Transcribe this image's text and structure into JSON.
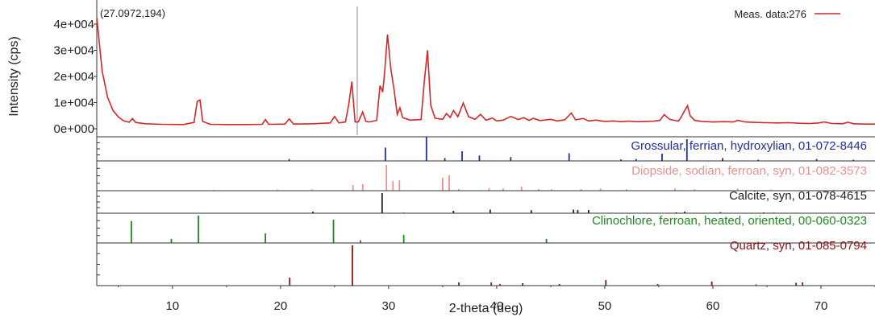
{
  "chart_data": {
    "type": "line",
    "xlabel": "2-theta (deg)",
    "ylabel": "Intensity (cps)",
    "xlim": [
      3,
      75
    ],
    "ylim": [
      0,
      40000
    ],
    "x_ticks": [
      "10",
      "20",
      "30",
      "40",
      "50",
      "60",
      "70"
    ],
    "y_ticks": [
      "0e+000",
      "1e+004",
      "2e+004",
      "3e+004",
      "4e+004"
    ],
    "cursor_readout": "(27.0972,194)",
    "cursor_x": 27.0972,
    "legend": {
      "label": "Meas. data:276",
      "color": "#d62728",
      "position": "top-right"
    },
    "series": [
      {
        "name": "Meas. data:276",
        "color": "#d62728",
        "x": [
          3.0,
          3.5,
          4.0,
          4.5,
          5.0,
          5.5,
          6.0,
          6.3,
          6.6,
          7.5,
          9.0,
          11.0,
          12.0,
          12.3,
          12.55,
          12.8,
          13.5,
          15.0,
          17.0,
          18.3,
          18.6,
          18.9,
          20.4,
          20.8,
          21.2,
          23.0,
          24.6,
          25.0,
          25.4,
          26.0,
          26.3,
          26.6,
          26.9,
          27.2,
          27.6,
          27.9,
          28.2,
          28.9,
          29.2,
          29.45,
          29.6,
          29.9,
          30.2,
          30.5,
          30.8,
          31.05,
          31.3,
          32.0,
          33.0,
          33.3,
          33.6,
          33.9,
          34.3,
          35.0,
          35.35,
          35.7,
          36.0,
          36.4,
          36.9,
          37.4,
          38.0,
          38.5,
          39.0,
          39.6,
          40.0,
          40.6,
          41.3,
          42.0,
          42.5,
          43.0,
          43.4,
          44.0,
          45.0,
          45.6,
          46.3,
          46.9,
          47.3,
          48.0,
          48.5,
          49.2,
          50.0,
          50.8,
          51.5,
          52.2,
          53.0,
          53.8,
          54.5,
          55.1,
          55.5,
          56.0,
          56.8,
          57.0,
          57.4,
          57.65,
          57.9,
          58.3,
          59.0,
          60.0,
          61.0,
          61.9,
          62.3,
          63.0,
          64.0,
          65.0,
          66.0,
          67.0,
          68.0,
          69.0,
          69.8,
          70.3,
          71.0,
          72.0,
          72.5,
          73.0,
          74.0,
          75.0
        ],
        "y": [
          42500,
          22000,
          12000,
          7000,
          4500,
          3000,
          2500,
          3900,
          2400,
          1900,
          1700,
          1600,
          2400,
          10500,
          11000,
          2800,
          1700,
          1600,
          1600,
          1700,
          3500,
          1700,
          1800,
          3800,
          1800,
          1900,
          2200,
          4700,
          2200,
          2600,
          9000,
          18000,
          2600,
          2600,
          6400,
          2800,
          2600,
          3200,
          16500,
          14000,
          20000,
          36000,
          23000,
          15000,
          5500,
          8000,
          4200,
          3300,
          3500,
          18000,
          30000,
          9000,
          4000,
          3600,
          5800,
          4300,
          7000,
          4600,
          9800,
          4600,
          3600,
          5500,
          3300,
          4100,
          3000,
          3300,
          4700,
          3500,
          4200,
          3200,
          4000,
          3100,
          3600,
          3000,
          3400,
          6000,
          3400,
          3900,
          3000,
          3300,
          2800,
          3000,
          2700,
          2900,
          2700,
          2800,
          2900,
          3200,
          5400,
          3600,
          2900,
          4000,
          7000,
          8800,
          5000,
          3200,
          2800,
          2600,
          2700,
          2600,
          3200,
          2600,
          2400,
          2300,
          2200,
          2300,
          2100,
          2000,
          2200,
          2600,
          2000,
          1900,
          2500,
          1900,
          1800,
          1800
        ]
      }
    ],
    "reference_phases": [
      {
        "name": "Grossular, ferrian, hydroxylian, 01-072-8446",
        "color": "#1f2fa0",
        "peaks": [
          [
            20.8,
            0.08
          ],
          [
            29.7,
            0.55
          ],
          [
            33.5,
            1.0
          ],
          [
            35.2,
            0.12
          ],
          [
            36.8,
            0.4
          ],
          [
            38.4,
            0.22
          ],
          [
            41.3,
            0.16
          ],
          [
            46.7,
            0.32
          ],
          [
            51.5,
            0.06
          ],
          [
            52.9,
            0.08
          ],
          [
            55.3,
            0.3
          ],
          [
            57.6,
            0.9
          ],
          [
            60.9,
            0.12
          ],
          [
            64.2,
            0.05
          ],
          [
            69.6,
            0.08
          ],
          [
            73.0,
            0.05
          ]
        ]
      },
      {
        "name": "Diopside, sodian, ferroan, syn, 01-082-3573",
        "color": "#f09090",
        "peaks": [
          [
            13.8,
            0.03
          ],
          [
            19.7,
            0.04
          ],
          [
            22.9,
            0.05
          ],
          [
            26.7,
            0.22
          ],
          [
            27.6,
            0.25
          ],
          [
            29.8,
            1.0
          ],
          [
            30.4,
            0.38
          ],
          [
            31.0,
            0.4
          ],
          [
            35.0,
            0.5
          ],
          [
            35.6,
            0.6
          ],
          [
            36.5,
            0.06
          ],
          [
            39.3,
            0.1
          ],
          [
            40.6,
            0.08
          ],
          [
            42.3,
            0.16
          ],
          [
            43.9,
            0.06
          ],
          [
            45.1,
            0.05
          ],
          [
            47.8,
            0.06
          ],
          [
            49.6,
            0.08
          ],
          [
            52.0,
            0.06
          ],
          [
            56.5,
            0.08
          ],
          [
            58.3,
            0.05
          ],
          [
            62.3,
            0.08
          ],
          [
            65.4,
            0.04
          ],
          [
            71.2,
            0.04
          ]
        ]
      },
      {
        "name": "Calcite, syn, 01-078-4615",
        "color": "#222222",
        "peaks": [
          [
            23.0,
            0.08
          ],
          [
            29.4,
            1.0
          ],
          [
            31.4,
            0.03
          ],
          [
            36.0,
            0.12
          ],
          [
            39.4,
            0.18
          ],
          [
            43.2,
            0.15
          ],
          [
            47.1,
            0.18
          ],
          [
            47.5,
            0.16
          ],
          [
            48.5,
            0.16
          ],
          [
            56.6,
            0.04
          ],
          [
            57.4,
            0.08
          ],
          [
            60.7,
            0.05
          ],
          [
            64.7,
            0.04
          ],
          [
            65.6,
            0.03
          ]
        ]
      },
      {
        "name": "Clinochlore, ferroan, heated, oriented, 00-060-0323",
        "color": "#1e8a1e",
        "peaks": [
          [
            6.2,
            0.8
          ],
          [
            9.9,
            0.15
          ],
          [
            12.4,
            1.0
          ],
          [
            18.6,
            0.35
          ],
          [
            24.9,
            0.85
          ],
          [
            27.4,
            0.1
          ],
          [
            31.4,
            0.3
          ],
          [
            44.6,
            0.15
          ]
        ]
      },
      {
        "name": "Quartz, syn, 01-085-0794",
        "color": "#8b1515",
        "peaks": [
          [
            20.85,
            0.2
          ],
          [
            26.65,
            1.0
          ],
          [
            36.5,
            0.08
          ],
          [
            39.5,
            0.08
          ],
          [
            40.3,
            0.04
          ],
          [
            42.4,
            0.06
          ],
          [
            45.8,
            0.04
          ],
          [
            50.1,
            0.14
          ],
          [
            54.9,
            0.04
          ],
          [
            59.9,
            0.1
          ],
          [
            64.0,
            0.03
          ],
          [
            67.7,
            0.07
          ],
          [
            68.3,
            0.08
          ]
        ]
      }
    ]
  }
}
